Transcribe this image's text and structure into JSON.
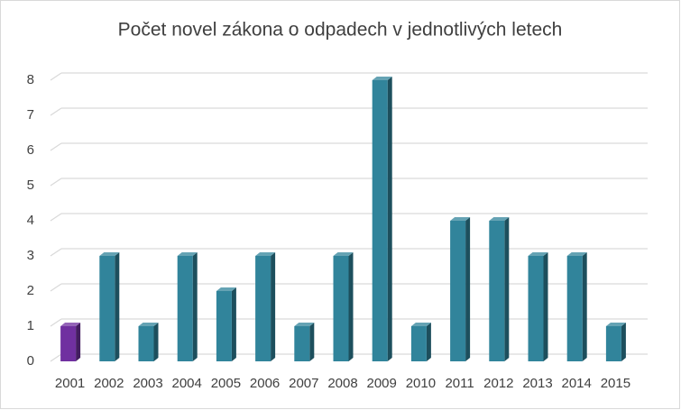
{
  "chart_data": {
    "type": "bar3d",
    "title": "Počet novel zákona o odpadech v jednotlivých letech",
    "categories": [
      "2001",
      "2002",
      "2003",
      "2004",
      "2005",
      "2006",
      "2007",
      "2008",
      "2009",
      "2010",
      "2011",
      "2012",
      "2013",
      "2014",
      "2015"
    ],
    "values": [
      1,
      3,
      1,
      3,
      2,
      3,
      1,
      3,
      8,
      1,
      4,
      4,
      3,
      3,
      1
    ],
    "colors": [
      "#7030a0",
      "#31849b",
      "#31849b",
      "#31849b",
      "#31849b",
      "#31849b",
      "#31849b",
      "#31849b",
      "#31849b",
      "#31849b",
      "#31849b",
      "#31849b",
      "#31849b",
      "#31849b",
      "#31849b"
    ],
    "ylim": [
      0,
      8
    ],
    "yticks": [
      0,
      1,
      2,
      3,
      4,
      5,
      6,
      7,
      8
    ],
    "grid": true
  }
}
